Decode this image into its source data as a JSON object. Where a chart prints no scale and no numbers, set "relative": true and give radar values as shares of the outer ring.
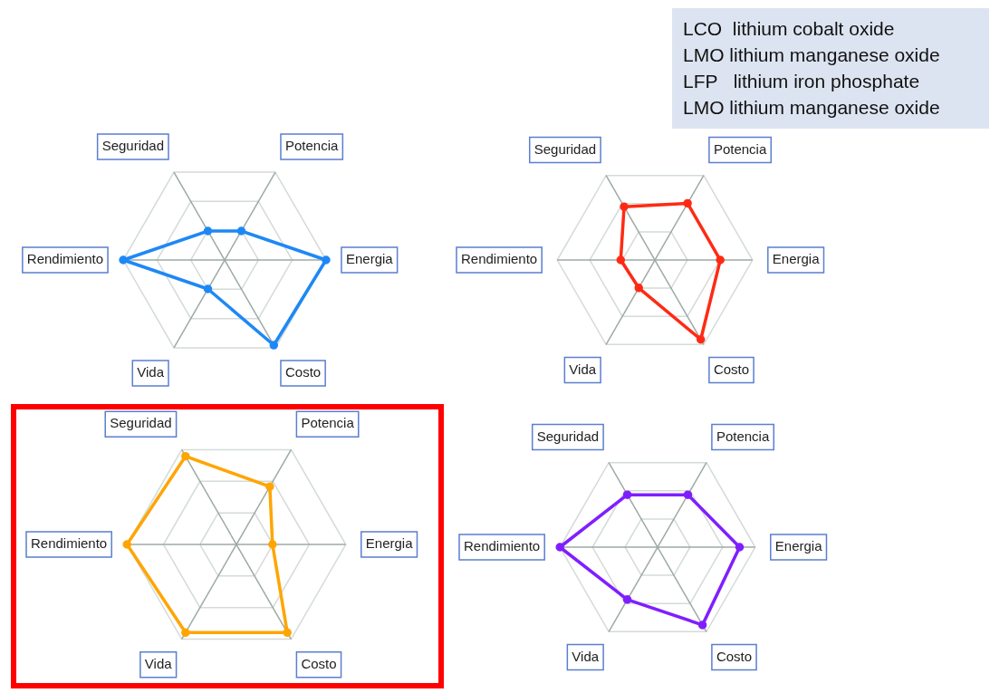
{
  "chart_data": [
    {
      "type": "other",
      "annotations": [
        "LCO  lithium cobalt oxide",
        "LMO lithium manganese oxide",
        "LFP   lithium iron phosphate",
        "LMO lithium manganese oxide"
      ]
    },
    {
      "type": "radar",
      "relative": true,
      "grid": true,
      "categories": [
        "Potencia",
        "Energia",
        "Costo",
        "Vida",
        "Rendimiento",
        "Seguridad"
      ],
      "marker": "circle",
      "series": [
        {
          "color": "#1e88f5",
          "values": [
            0.33,
            1,
            0.97,
            0.33,
            1,
            0.33
          ]
        }
      ]
    },
    {
      "type": "radar",
      "relative": true,
      "grid": true,
      "categories": [
        "Potencia",
        "Energia",
        "Costo",
        "Vida",
        "Rendimiento",
        "Seguridad"
      ],
      "marker": "circle",
      "series": [
        {
          "color": "#ff2a14",
          "values": [
            0.67,
            0.67,
            0.94,
            0.33,
            0.35,
            0.63
          ]
        }
      ]
    },
    {
      "type": "radar",
      "relative": true,
      "grid": true,
      "categories": [
        "Potencia",
        "Energia",
        "Costo",
        "Vida",
        "Rendimiento",
        "Seguridad"
      ],
      "marker": "circle",
      "series": [
        {
          "color": "#ffa500",
          "values": [
            0.61,
            0.33,
            0.93,
            0.93,
            1,
            0.93
          ]
        }
      ]
    },
    {
      "type": "radar",
      "relative": true,
      "grid": true,
      "categories": [
        "Potencia",
        "Energia",
        "Costo",
        "Vida",
        "Rendimiento",
        "Seguridad"
      ],
      "marker": "circle",
      "series": [
        {
          "color": "#7f1fff",
          "values": [
            0.62,
            0.84,
            0.92,
            0.62,
            1,
            0.62
          ]
        }
      ]
    }
  ]
}
